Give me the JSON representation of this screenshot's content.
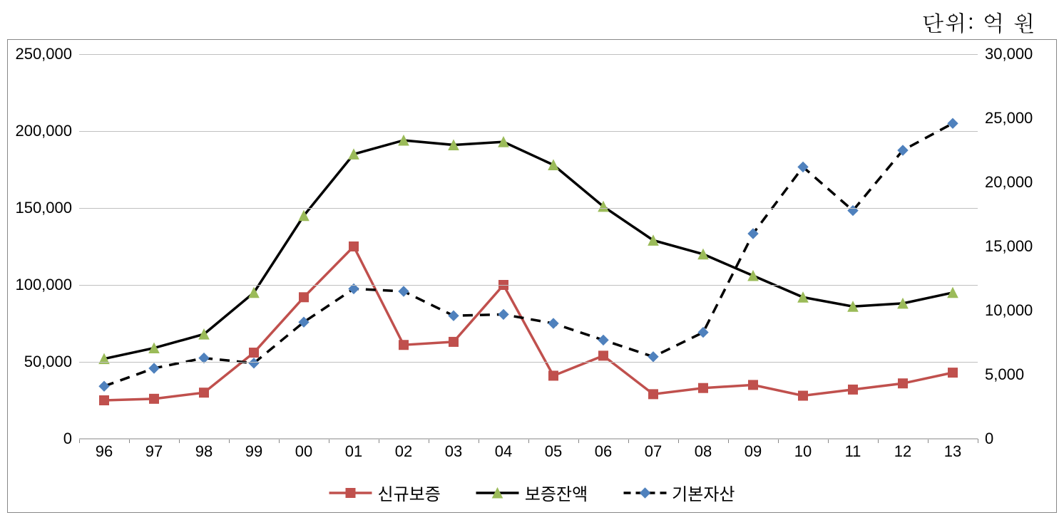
{
  "unit_label": "단위: 억 원",
  "chart": {
    "type": "line",
    "categories": [
      "96",
      "97",
      "98",
      "99",
      "00",
      "01",
      "02",
      "03",
      "04",
      "05",
      "06",
      "07",
      "08",
      "09",
      "10",
      "11",
      "12",
      "13"
    ],
    "y_left": {
      "min": 0,
      "max": 250000,
      "ticks": [
        0,
        50000,
        100000,
        150000,
        200000,
        250000
      ],
      "tick_labels": [
        "0",
        "50,000",
        "100,000",
        "150,000",
        "200,000",
        "250,000"
      ]
    },
    "y_right": {
      "min": 0,
      "max": 30000,
      "ticks": [
        0,
        5000,
        10000,
        15000,
        20000,
        25000,
        30000
      ],
      "tick_labels": [
        "0",
        "5,000",
        "10,000",
        "15,000",
        "20,000",
        "25,000",
        "30,000"
      ]
    },
    "series": [
      {
        "name": "신규보증",
        "axis": "left",
        "data": [
          25000,
          26000,
          30000,
          56000,
          92000,
          125000,
          61000,
          63000,
          100000,
          41000,
          54000,
          29000,
          33000,
          35000,
          28000,
          32000,
          36000,
          43000
        ],
        "color": "#c0504d",
        "line_width": 3.5,
        "marker": "square",
        "marker_size": 13,
        "dash": "solid"
      },
      {
        "name": "보증잔액",
        "axis": "left",
        "data": [
          52000,
          59000,
          68000,
          95000,
          145000,
          185000,
          194000,
          191000,
          193000,
          178000,
          151000,
          129000,
          120000,
          106000,
          92000,
          86000,
          88000,
          95000
        ],
        "color": "#9bbb59",
        "line_width": 3.5,
        "marker": "triangle",
        "marker_size": 14,
        "dash": "solid",
        "line_color": "#000000"
      },
      {
        "name": "기본자산",
        "axis": "right",
        "data": [
          4100,
          5500,
          6300,
          5900,
          9100,
          11700,
          11500,
          9600,
          9700,
          9000,
          7700,
          6400,
          8300,
          16000,
          21200,
          17800,
          22500,
          24600
        ],
        "color": "#4f81bd",
        "line_width": 3.5,
        "marker": "diamond",
        "marker_size": 14,
        "dash": "dashed",
        "line_color": "#000000"
      }
    ],
    "grid_color": "#c0c0c0",
    "background_color": "#ffffff",
    "plot_border_color": "#888888"
  }
}
